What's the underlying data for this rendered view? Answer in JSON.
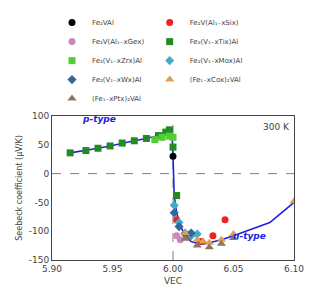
{
  "chart_data": {
    "type": "scatter",
    "xlabel": "VEC",
    "ylabel": "Seebeck coefficient (μV/K)",
    "xlim": [
      5.9,
      6.1
    ],
    "ylim": [
      -150,
      100
    ],
    "xticks": [
      {
        "value": 5.9,
        "label": "5.90"
      },
      {
        "value": 5.95,
        "label": "5.95"
      },
      {
        "value": 6.0,
        "label": "6.00"
      },
      {
        "value": 6.05,
        "label": "6.05"
      },
      {
        "value": 6.1,
        "label": "6.10"
      }
    ],
    "yticks": [
      -150,
      -100,
      -50,
      0,
      50,
      100
    ],
    "grid": false,
    "legend": "top",
    "hline": 0,
    "vline": 6.0,
    "annotations": [
      {
        "text": "p-type",
        "x": 5.923,
        "y": 82,
        "color": "#2222DD"
      },
      {
        "text": "n-type",
        "x": 6.048,
        "y": -120,
        "color": "#2222DD"
      },
      {
        "text": "300 K",
        "x": 6.098,
        "y": 93
      }
    ],
    "series": [
      {
        "type": "line",
        "color": "#2222DD",
        "x": [
          5.915,
          5.928,
          5.938,
          5.948,
          5.958,
          5.968,
          5.978,
          5.988,
          5.994,
          5.997,
          5.999,
          6.0,
          6.001,
          6.003,
          6.006,
          6.01,
          6.015,
          6.02,
          6.025,
          6.03,
          6.04,
          6.05,
          6.06,
          6.08,
          6.1
        ],
        "values": [
          36,
          40,
          44,
          48,
          53,
          57,
          61,
          66,
          72,
          76,
          79,
          30,
          -38,
          -68,
          -90,
          -108,
          -118,
          -121,
          -122,
          -120,
          -115,
          -108,
          -100,
          -85,
          -50
        ]
      },
      {
        "name": "Fe₂VAl",
        "color": "black",
        "marker": "circle",
        "x": [
          6.0
        ],
        "values": [
          30
        ]
      },
      {
        "name": "Fe₂V(Al₁₋xSix)",
        "color": "#EE2222",
        "marker": "circle",
        "x": [
          6.003,
          6.013,
          6.023,
          6.033,
          6.043
        ],
        "values": [
          -80,
          -110,
          -118,
          -108,
          -80
        ]
      },
      {
        "name": "Fe₂V(Al₁₋xGex)",
        "color": "#CC88BB",
        "marker": "circle",
        "x": [
          6.003,
          6.006
        ],
        "values": [
          -108,
          -115
        ]
      },
      {
        "name": "Fe₂(V₁₋xTix)Al",
        "color": "#228B22",
        "marker": "square",
        "x": [
          5.915,
          5.928,
          5.938,
          5.948,
          5.958,
          5.968,
          5.978,
          5.988,
          5.994,
          5.997,
          6.0,
          6.003
        ],
        "values": [
          36,
          40,
          44,
          48,
          53,
          57,
          61,
          66,
          72,
          76,
          46,
          -38
        ]
      },
      {
        "name": "Fe₂(V₁₋xZrx)Al",
        "color": "#55CC33",
        "marker": "square",
        "x": [
          5.985,
          5.991,
          5.997,
          6.0
        ],
        "values": [
          59,
          63,
          65,
          63
        ]
      },
      {
        "name": "Fe₂(V₁₋xMox)Al",
        "color": "#44AACC",
        "marker": "diamond",
        "x": [
          6.001,
          6.005,
          6.01,
          6.015,
          6.02
        ],
        "values": [
          -55,
          -85,
          -103,
          -108,
          -105
        ]
      },
      {
        "name": "Fe₂(V₁₋xWx)Al",
        "color": "#336699",
        "marker": "diamond",
        "x": [
          6.001,
          6.005,
          6.01,
          6.015
        ],
        "values": [
          -68,
          -92,
          -105,
          -103
        ]
      },
      {
        "name": "(Fe₁₋xCox)₂VAl",
        "color": "#DDA050",
        "marker": "triangle-up",
        "x": [
          6.01,
          6.02,
          6.025,
          6.03,
          6.04,
          6.05,
          6.1
        ],
        "values": [
          -103,
          -115,
          -118,
          -120,
          -115,
          -105,
          -48
        ]
      },
      {
        "name": "(Fe₁₋xPtx)₂VAl",
        "color": "#887766",
        "marker": "triangle-up",
        "x": [
          6.01,
          6.02,
          6.03,
          6.04,
          6.05
        ],
        "values": [
          -113,
          -125,
          -128,
          -122,
          -112
        ]
      }
    ]
  }
}
